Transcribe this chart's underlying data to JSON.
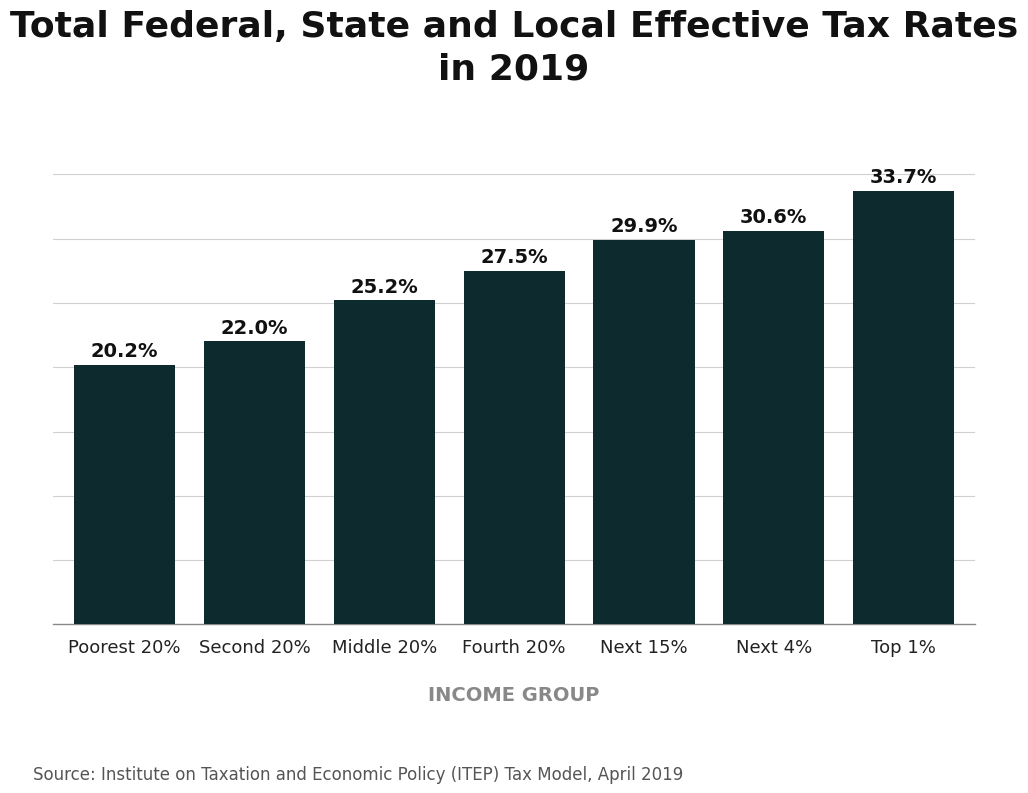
{
  "title": "Total Federal, State and Local Effective Tax Rates\nin 2019",
  "categories": [
    "Poorest 20%",
    "Second 20%",
    "Middle 20%",
    "Fourth 20%",
    "Next 15%",
    "Next 4%",
    "Top 1%"
  ],
  "values": [
    20.2,
    22.0,
    25.2,
    27.5,
    29.9,
    30.6,
    33.7
  ],
  "bar_color": "#0d2b2e",
  "xlabel": "INCOME GROUP",
  "source_text": "Source: Institute on Taxation and Economic Policy (ITEP) Tax Model, April 2019",
  "ylim": [
    0,
    37
  ],
  "grid_color": "#d0d0d0",
  "background_color": "#ffffff",
  "title_fontsize": 26,
  "xlabel_fontsize": 14,
  "label_fontsize": 14,
  "source_fontsize": 12,
  "tick_fontsize": 13,
  "bar_width": 0.78
}
